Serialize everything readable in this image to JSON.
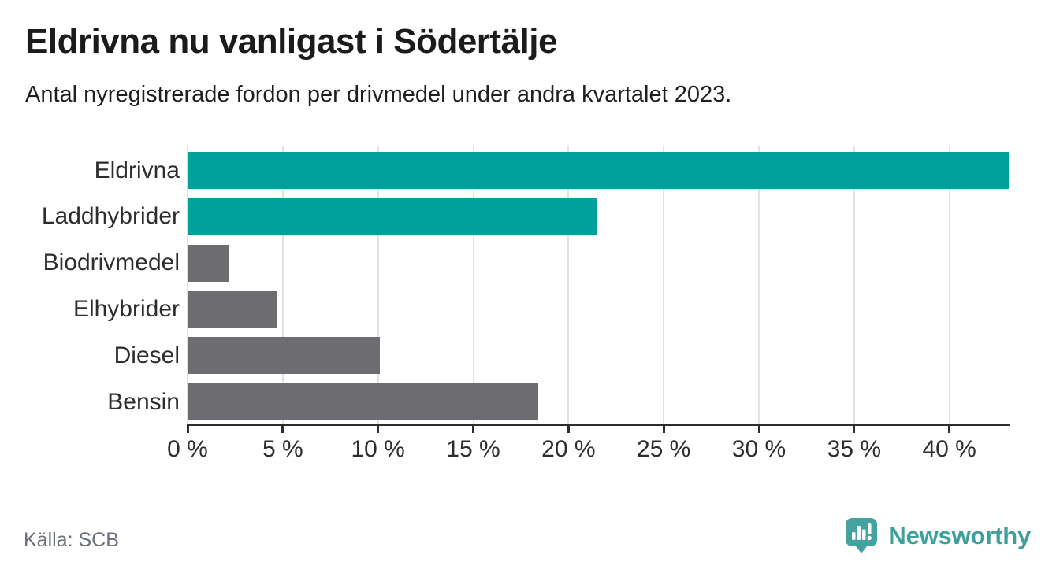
{
  "chart_data": {
    "type": "bar",
    "orientation": "horizontal",
    "title": "Eldrivna nu vanligast i Södertälje",
    "subtitle": "Antal nyregistrerade fordon per drivmedel under andra kvartalet 2023.",
    "categories": [
      "Eldrivna",
      "Laddhybrider",
      "Biodrivmedel",
      "Elhybrider",
      "Diesel",
      "Bensin"
    ],
    "values": [
      43.1,
      21.5,
      2.2,
      4.7,
      10.1,
      18.4
    ],
    "unit": "%",
    "highlighted": [
      true,
      true,
      false,
      false,
      false,
      false
    ],
    "xlim": [
      0,
      43.2
    ],
    "x_tick_values": [
      0,
      5,
      10,
      15,
      20,
      25,
      30,
      35,
      40
    ],
    "x_tick_labels": [
      "0 %",
      "5 %",
      "10 %",
      "15 %",
      "20 %",
      "25 %",
      "30 %",
      "35 %",
      "40 %"
    ],
    "grid": "vertical-gridlines",
    "legend": "none",
    "colors": {
      "highlight": "#00a19a",
      "default": "#6c6c71",
      "gridline": "#e2e2e2",
      "axis": "#2e2e2e",
      "text": "#2d2d2d"
    }
  },
  "footer": {
    "source": "Källa: SCB",
    "brand": "Newsworthy",
    "brand_color": "#3f9f9c"
  }
}
